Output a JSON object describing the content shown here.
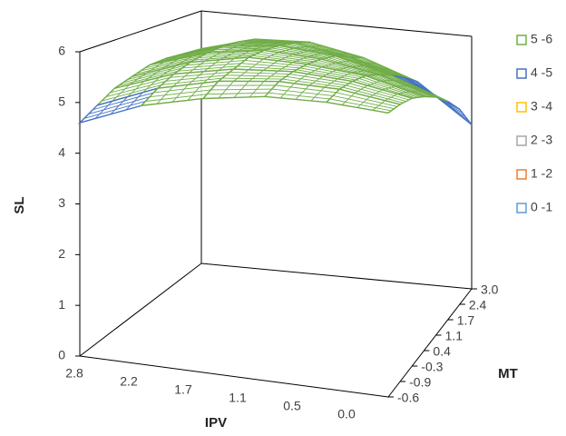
{
  "chart_data": {
    "type": "surface",
    "z_title": "SL",
    "x_title": "IPV",
    "y_title": "MT",
    "x_categories": [
      "2.8",
      "2.2",
      "1.7",
      "1.1",
      "0.5",
      {
        "value": 0,
        "label": "0.0"
      }
    ],
    "y_categories": [
      "-0.6",
      "-0.9",
      "-0.3",
      "0.4",
      "1.1",
      "1.7",
      "2.4",
      "3.0"
    ],
    "zlim": [
      0,
      6
    ],
    "zticks": [
      0,
      1,
      2,
      3,
      4,
      5,
      6
    ],
    "bands": [
      {
        "name": "0 -1",
        "color": "#5b9bd5"
      },
      {
        "name": "1 -2",
        "color": "#ed7d31"
      },
      {
        "name": "2 -3",
        "color": "#a5a5a5"
      },
      {
        "name": "3 -4",
        "color": "#ffc000"
      },
      {
        "name": "4 -5",
        "color": "#4472c4"
      },
      {
        "name": "5 -6",
        "color": "#70ad47"
      }
    ],
    "values": [
      [
        4.6,
        5.1,
        5.4,
        5.6,
        5.65,
        5.6
      ],
      [
        4.8,
        5.3,
        5.6,
        5.75,
        5.75,
        5.6
      ],
      [
        5.0,
        5.45,
        5.7,
        5.8,
        5.75,
        5.55
      ],
      [
        5.1,
        5.55,
        5.8,
        5.8,
        5.7,
        5.4
      ],
      [
        5.2,
        5.6,
        5.8,
        5.75,
        5.55,
        5.2
      ],
      [
        5.2,
        5.6,
        5.75,
        5.65,
        5.35,
        4.9
      ],
      [
        5.15,
        5.55,
        5.65,
        5.45,
        5.1,
        4.5
      ],
      [
        5.1,
        5.45,
        5.5,
        5.25,
        4.8,
        3.9
      ]
    ]
  }
}
